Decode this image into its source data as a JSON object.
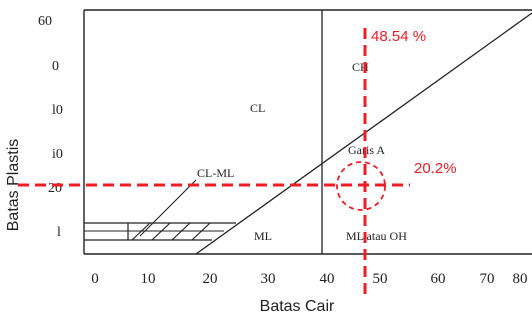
{
  "chart_data": {
    "type": "line",
    "xlabel": "Batas Cair",
    "ylabel": "Batas Plastis",
    "xlim": [
      0,
      80
    ],
    "ylim": [
      0,
      60
    ],
    "x_ticks": [
      "0",
      "10",
      "20",
      "30",
      "40",
      "50",
      "60",
      "70",
      "80"
    ],
    "y_ticks": [
      "60",
      "0",
      "l0",
      "i0",
      "20",
      "l"
    ],
    "series": [
      {
        "x": [
          13,
          80
        ],
        "y": [
          4,
          60
        ]
      },
      {
        "x": [
          40,
          40
        ],
        "y": [
          0,
          60
        ]
      },
      {
        "x": [
          7,
          25
        ],
        "y": [
          7,
          7
        ]
      },
      {
        "x": [
          7,
          25
        ],
        "y": [
          4,
          4
        ]
      },
      {
        "x": [
          7,
          7
        ],
        "y": [
          4,
          7
        ]
      }
    ],
    "regions": [
      {
        "label": "CL"
      },
      {
        "label": "CH"
      },
      {
        "label": "CL-ML"
      },
      {
        "label": "ML"
      },
      {
        "label": "ML atau OH"
      },
      {
        "label": "Garis A"
      }
    ],
    "annotations": [
      {
        "label": "48.54 %",
        "x": 48.54,
        "color": "#ee1c24"
      },
      {
        "label": "20.2%",
        "y": 20.2,
        "color": "#ee1c24"
      }
    ]
  }
}
